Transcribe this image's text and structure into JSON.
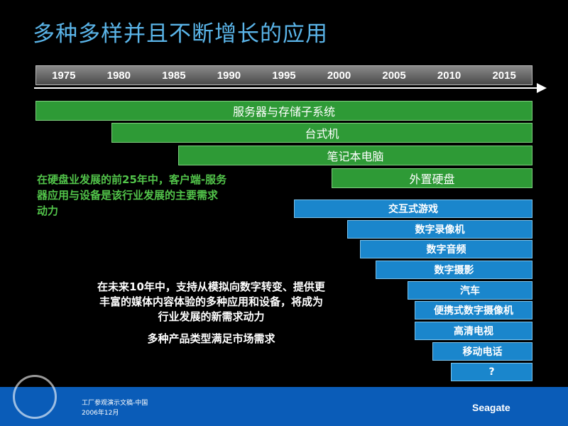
{
  "title": "多种多样并且不断增长的应用",
  "timeline": [
    "1975",
    "1980",
    "1985",
    "1990",
    "1995",
    "2000",
    "2005",
    "2010",
    "2015"
  ],
  "green_bars": [
    "服务器与存储子系统",
    "台式机",
    "笔记本电脑",
    "外置硬盘"
  ],
  "green_note": [
    "在硬盘业发展的前25年中，客户端-服务",
    "器应用与设备是该行业发展的主要需求",
    "动力"
  ],
  "blue_bars": [
    "交互式游戏",
    "数字录像机",
    "数字音频",
    "数字摄影",
    "汽车",
    "便携式数字摄像机",
    "高清电视",
    "移动电话",
    "?"
  ],
  "white_note": [
    "在未来10年中，支持从模拟向数字转变、提供更",
    "丰富的媒体内容体验的多种应用和设备，将成为",
    "行业发展的新需求动力"
  ],
  "summary": "多种产品类型满足市场需求",
  "footer": {
    "line1": "工厂参观演示文稿-中国",
    "line2": "2006年12月",
    "logo": "Seagate"
  }
}
